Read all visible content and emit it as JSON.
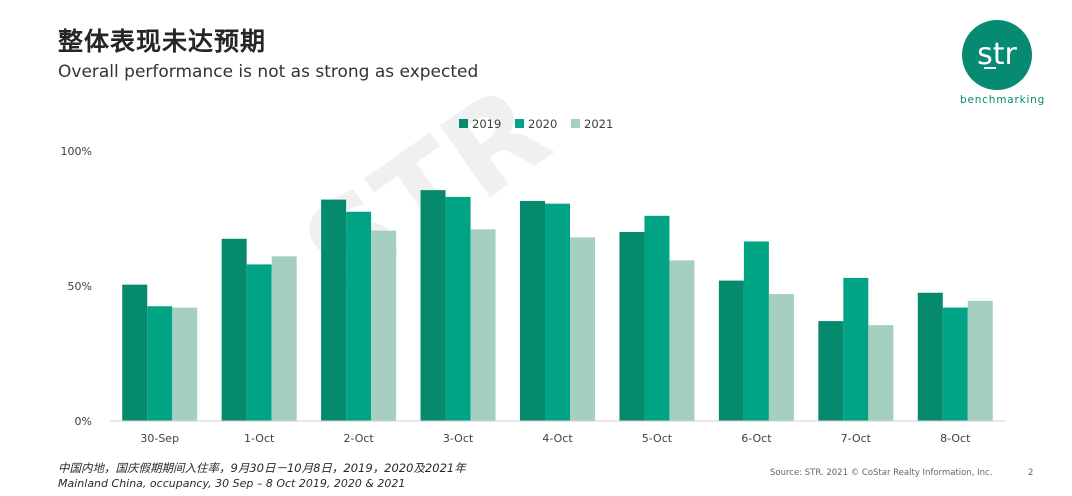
{
  "slide": {
    "title": "整体表现未达预期",
    "subtitle": "Overall performance is not as strong as expected",
    "footnote_cn": "中国内地，国庆假期期间入住率，9月30日－10月8日，2019，2020及2021年",
    "footnote_en": "Mainland China, occupancy, 30 Sep – 8 Oct 2019, 2020 & 2021",
    "source": "Source: STR. 2021 © CoStar Realty Information, Inc.",
    "page_number": "2",
    "watermark": "STR"
  },
  "logo": {
    "text": "str",
    "subtext": "benchmarking",
    "color": "#078a72"
  },
  "chart_data": {
    "type": "bar",
    "categories": [
      "30-Sep",
      "1-Oct",
      "2-Oct",
      "3-Oct",
      "4-Oct",
      "5-Oct",
      "6-Oct",
      "7-Oct",
      "8-Oct"
    ],
    "series": [
      {
        "name": "2019",
        "color": "#058a6e",
        "values": [
          50.5,
          67.5,
          82,
          85.5,
          81.5,
          70,
          52,
          37,
          47.5
        ]
      },
      {
        "name": "2020",
        "color": "#00a383",
        "values": [
          42.5,
          58,
          77.5,
          83,
          80.5,
          76,
          66.5,
          53,
          42
        ]
      },
      {
        "name": "2021",
        "color": "#a5cfc0",
        "values": [
          42,
          61,
          70.5,
          71,
          68,
          59.5,
          47,
          35.5,
          44.5
        ]
      }
    ],
    "yticks": [
      "0%",
      "50%",
      "100%"
    ],
    "ytick_values": [
      0,
      50,
      100
    ],
    "ylim": [
      0,
      100
    ],
    "grid": false,
    "legend_position": "top-center"
  }
}
